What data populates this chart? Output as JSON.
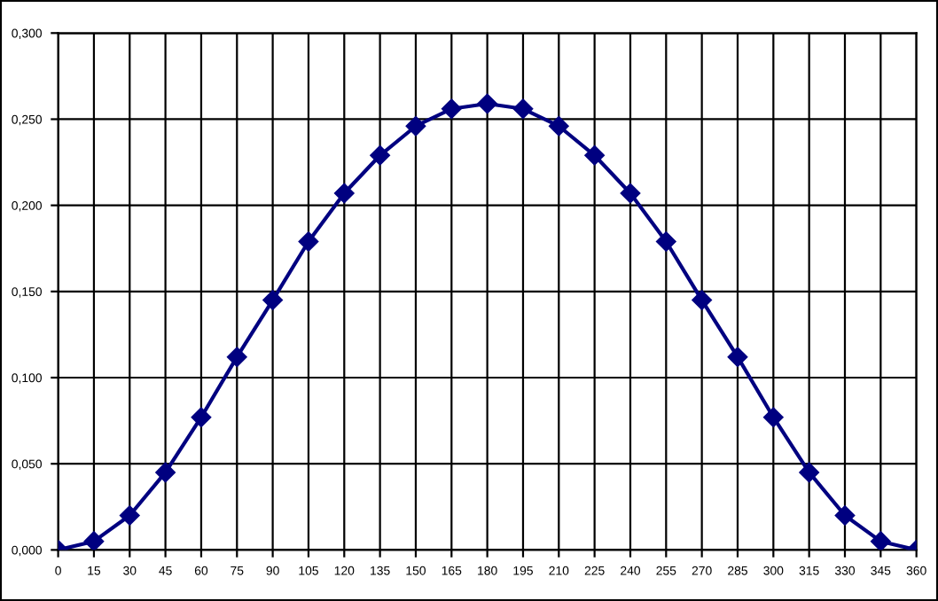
{
  "chart_data": {
    "type": "line",
    "x": [
      0,
      15,
      30,
      45,
      60,
      75,
      90,
      105,
      120,
      135,
      150,
      165,
      180,
      195,
      210,
      225,
      240,
      255,
      270,
      285,
      300,
      315,
      330,
      345,
      360
    ],
    "series": [
      {
        "color": "#000080",
        "values": [
          0.0,
          0.005,
          0.02,
          0.045,
          0.077,
          0.112,
          0.145,
          0.179,
          0.207,
          0.229,
          0.246,
          0.256,
          0.259,
          0.256,
          0.246,
          0.229,
          0.207,
          0.179,
          0.145,
          0.112,
          0.077,
          0.045,
          0.02,
          0.005,
          0.0
        ]
      }
    ],
    "xlim": [
      0,
      360
    ],
    "xticks": [
      0,
      15,
      30,
      45,
      60,
      75,
      90,
      105,
      120,
      135,
      150,
      165,
      180,
      195,
      210,
      225,
      240,
      255,
      270,
      285,
      300,
      315,
      330,
      345,
      360
    ],
    "ylim": [
      0,
      0.3
    ],
    "yticks": [
      {
        "value": 0,
        "label": "0,000"
      },
      {
        "value": 0.05,
        "label": "0,050"
      },
      {
        "value": 0.1,
        "label": "0,100"
      },
      {
        "value": 0.15,
        "label": "0,150"
      },
      {
        "value": 0.2,
        "label": "0,200"
      },
      {
        "value": 0.25,
        "label": "0,250"
      },
      {
        "value": 0.3,
        "label": "0,300"
      }
    ],
    "grid": true,
    "marker": "diamond",
    "line_style": "solid",
    "legend": false
  }
}
